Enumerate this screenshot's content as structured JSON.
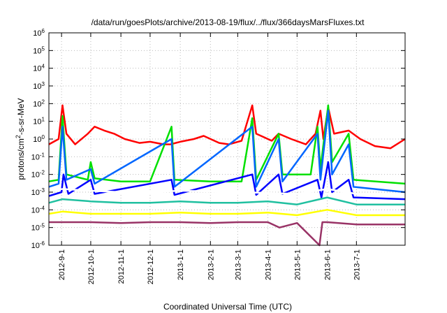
{
  "chart_data": {
    "type": "line",
    "title": "/data/run/goesPlots/archive/2013-08-19/flux/../flux/366daysMarsFluxes.txt",
    "xlabel": "Coordinated Universal Time (UTC)",
    "ylabel": {
      "pre": "protons/cm",
      "sup": "2",
      "post": "-s-sr-MeV"
    },
    "yscale": "log",
    "ylim": [
      1e-06,
      1000000.0
    ],
    "y_ticks": [
      {
        "base": "10",
        "exp": "-6"
      },
      {
        "base": "10",
        "exp": "-5"
      },
      {
        "base": "10",
        "exp": "-4"
      },
      {
        "base": "10",
        "exp": "-3"
      },
      {
        "base": "10",
        "exp": "-2"
      },
      {
        "base": "10",
        "exp": "-1"
      },
      {
        "base": "10",
        "exp": "0"
      },
      {
        "base": "10",
        "exp": "1"
      },
      {
        "base": "10",
        "exp": "2"
      },
      {
        "base": "10",
        "exp": "3"
      },
      {
        "base": "10",
        "exp": "4"
      },
      {
        "base": "10",
        "exp": "5"
      },
      {
        "base": "10",
        "exp": "6"
      }
    ],
    "xlim": [
      "2012-08-19",
      "2013-08-20"
    ],
    "x_ticks": [
      "2012-9-1",
      "2012-10-1",
      "2012-11-1",
      "2012-12-1",
      "2013-1-1",
      "2013-2-1",
      "2013-3-1",
      "2013-4-1",
      "2013-5-1",
      "2013-6-1",
      "2013-7-1"
    ],
    "grid": true,
    "legend": null,
    "series": [
      {
        "color": "#ff0000",
        "points": [
          [
            "2012-08-19",
            0.5
          ],
          [
            "2012-08-29",
            1.0
          ],
          [
            "2012-09-02",
            80
          ],
          [
            "2012-09-06",
            2
          ],
          [
            "2012-09-15",
            0.5
          ],
          [
            "2012-09-28",
            2
          ],
          [
            "2012-10-05",
            5
          ],
          [
            "2012-10-15",
            3
          ],
          [
            "2012-10-25",
            2
          ],
          [
            "2012-11-05",
            1
          ],
          [
            "2012-11-20",
            0.6
          ],
          [
            "2012-12-01",
            0.7
          ],
          [
            "2012-12-15",
            0.5
          ],
          [
            "2012-12-22",
            0.5
          ],
          [
            "2013-01-01",
            0.7
          ],
          [
            "2013-01-15",
            1
          ],
          [
            "2013-01-25",
            1.5
          ],
          [
            "2013-02-10",
            0.6
          ],
          [
            "2013-02-20",
            0.5
          ],
          [
            "2013-03-05",
            0.8
          ],
          [
            "2013-03-16",
            80
          ],
          [
            "2013-03-20",
            2
          ],
          [
            "2013-04-05",
            0.8
          ],
          [
            "2013-04-12",
            2
          ],
          [
            "2013-04-25",
            1
          ],
          [
            "2013-05-10",
            0.5
          ],
          [
            "2013-05-20",
            2
          ],
          [
            "2013-05-25",
            40
          ],
          [
            "2013-05-28",
            1
          ],
          [
            "2013-06-02",
            60
          ],
          [
            "2013-06-08",
            2
          ],
          [
            "2013-06-23",
            3
          ],
          [
            "2013-07-05",
            1
          ],
          [
            "2013-07-20",
            0.4
          ],
          [
            "2013-08-05",
            0.3
          ],
          [
            "2013-08-20",
            1
          ]
        ]
      },
      {
        "color": "#00e000",
        "points": [
          [
            "2012-08-19",
            0.004
          ],
          [
            "2012-08-29",
            0.005
          ],
          [
            "2012-09-02",
            20
          ],
          [
            "2012-09-06",
            0.01
          ],
          [
            "2012-09-28",
            0.005
          ],
          [
            "2012-10-01",
            0.05
          ],
          [
            "2012-10-05",
            0.006
          ],
          [
            "2012-11-01",
            0.004
          ],
          [
            "2012-12-01",
            0.004
          ],
          [
            "2012-12-23",
            5
          ],
          [
            "2012-12-26",
            0.005
          ],
          [
            "2013-02-01",
            0.004
          ],
          [
            "2013-03-05",
            0.004
          ],
          [
            "2013-03-16",
            15
          ],
          [
            "2013-03-20",
            0.005
          ],
          [
            "2013-04-12",
            2
          ],
          [
            "2013-04-16",
            0.01
          ],
          [
            "2013-05-15",
            0.01
          ],
          [
            "2013-05-22",
            5
          ],
          [
            "2013-05-25",
            0.02
          ],
          [
            "2013-06-02",
            80
          ],
          [
            "2013-06-06",
            0.05
          ],
          [
            "2013-06-23",
            2
          ],
          [
            "2013-06-28",
            0.005
          ],
          [
            "2013-08-20",
            0.003
          ]
        ]
      },
      {
        "color": "#0066ff",
        "points": [
          [
            "2012-08-19",
            0.002
          ],
          [
            "2012-08-29",
            0.003
          ],
          [
            "2012-09-02",
            5
          ],
          [
            "2012-09-06",
            0.005
          ],
          [
            "2012-10-01",
            0.02
          ],
          [
            "2012-10-05",
            0.003
          ],
          [
            "2012-12-23",
            1
          ],
          [
            "2012-12-26",
            0.002
          ],
          [
            "2013-03-16",
            5
          ],
          [
            "2013-03-20",
            0.002
          ],
          [
            "2013-04-12",
            1
          ],
          [
            "2013-04-16",
            0.004
          ],
          [
            "2013-05-22",
            2
          ],
          [
            "2013-05-25",
            0.005
          ],
          [
            "2013-06-02",
            40
          ],
          [
            "2013-06-06",
            0.01
          ],
          [
            "2013-06-23",
            0.5
          ],
          [
            "2013-06-28",
            0.002
          ],
          [
            "2013-08-20",
            0.001
          ]
        ]
      },
      {
        "color": "#0000ff",
        "points": [
          [
            "2012-08-19",
            0.0006
          ],
          [
            "2012-09-01",
            0.001
          ],
          [
            "2012-09-03",
            0.01
          ],
          [
            "2012-09-08",
            0.0008
          ],
          [
            "2012-10-01",
            0.005
          ],
          [
            "2012-10-05",
            0.0008
          ],
          [
            "2012-12-23",
            0.005
          ],
          [
            "2012-12-26",
            0.0007
          ],
          [
            "2013-03-16",
            0.01
          ],
          [
            "2013-03-20",
            0.0007
          ],
          [
            "2013-04-12",
            0.01
          ],
          [
            "2013-04-16",
            0.0008
          ],
          [
            "2013-05-22",
            0.005
          ],
          [
            "2013-05-26",
            0.0005
          ],
          [
            "2013-06-02",
            0.05
          ],
          [
            "2013-06-06",
            0.001
          ],
          [
            "2013-06-23",
            0.005
          ],
          [
            "2013-06-28",
            0.0005
          ],
          [
            "2013-08-20",
            0.0004
          ]
        ]
      },
      {
        "color": "#ffffff",
        "points": [
          [
            "2012-08-19",
            0.0012
          ],
          [
            "2012-09-02",
            0.0015
          ],
          [
            "2012-10-01",
            0.0012
          ],
          [
            "2012-11-01",
            0.001
          ],
          [
            "2012-12-01",
            0.001
          ],
          [
            "2013-01-01",
            0.0012
          ],
          [
            "2013-02-01",
            0.0011
          ],
          [
            "2013-03-01",
            0.001
          ],
          [
            "2013-04-01",
            0.0009
          ],
          [
            "2013-05-01",
            0.0008
          ],
          [
            "2013-06-01",
            0.0015
          ],
          [
            "2013-07-01",
            0.0008
          ],
          [
            "2013-08-20",
            0.0007
          ]
        ]
      },
      {
        "color": "#20c0a0",
        "points": [
          [
            "2012-08-19",
            0.00025
          ],
          [
            "2012-09-02",
            0.0004
          ],
          [
            "2012-10-01",
            0.0003
          ],
          [
            "2012-11-01",
            0.00025
          ],
          [
            "2012-12-01",
            0.00025
          ],
          [
            "2013-01-01",
            0.0003
          ],
          [
            "2013-02-01",
            0.00025
          ],
          [
            "2013-03-01",
            0.00025
          ],
          [
            "2013-04-01",
            0.0003
          ],
          [
            "2013-05-01",
            0.0002
          ],
          [
            "2013-06-01",
            0.0005
          ],
          [
            "2013-07-01",
            0.0002
          ],
          [
            "2013-08-20",
            0.0002
          ]
        ]
      },
      {
        "color": "#ffff00",
        "points": [
          [
            "2012-08-19",
            6e-05
          ],
          [
            "2012-09-02",
            8e-05
          ],
          [
            "2012-10-01",
            6e-05
          ],
          [
            "2012-11-01",
            6e-05
          ],
          [
            "2012-12-01",
            6e-05
          ],
          [
            "2013-01-01",
            7e-05
          ],
          [
            "2013-02-01",
            6e-05
          ],
          [
            "2013-03-01",
            6e-05
          ],
          [
            "2013-04-01",
            7e-05
          ],
          [
            "2013-05-01",
            5e-05
          ],
          [
            "2013-06-01",
            0.0001
          ],
          [
            "2013-07-01",
            5e-05
          ],
          [
            "2013-08-20",
            5e-05
          ]
        ]
      },
      {
        "color": "#993366",
        "points": [
          [
            "2012-08-19",
            2e-05
          ],
          [
            "2012-09-02",
            2e-05
          ],
          [
            "2012-10-01",
            2e-05
          ],
          [
            "2012-11-01",
            1.8e-05
          ],
          [
            "2012-12-01",
            2e-05
          ],
          [
            "2013-01-01",
            2e-05
          ],
          [
            "2013-02-01",
            1.8e-05
          ],
          [
            "2013-03-01",
            2e-05
          ],
          [
            "2013-04-01",
            2e-05
          ],
          [
            "2013-04-13",
            1e-05
          ],
          [
            "2013-05-01",
            1.8e-05
          ],
          [
            "2013-05-24",
            1e-06
          ],
          [
            "2013-05-27",
            2e-05
          ],
          [
            "2013-06-01",
            2e-05
          ],
          [
            "2013-07-01",
            1.5e-05
          ],
          [
            "2013-08-20",
            1.5e-05
          ]
        ]
      }
    ]
  }
}
